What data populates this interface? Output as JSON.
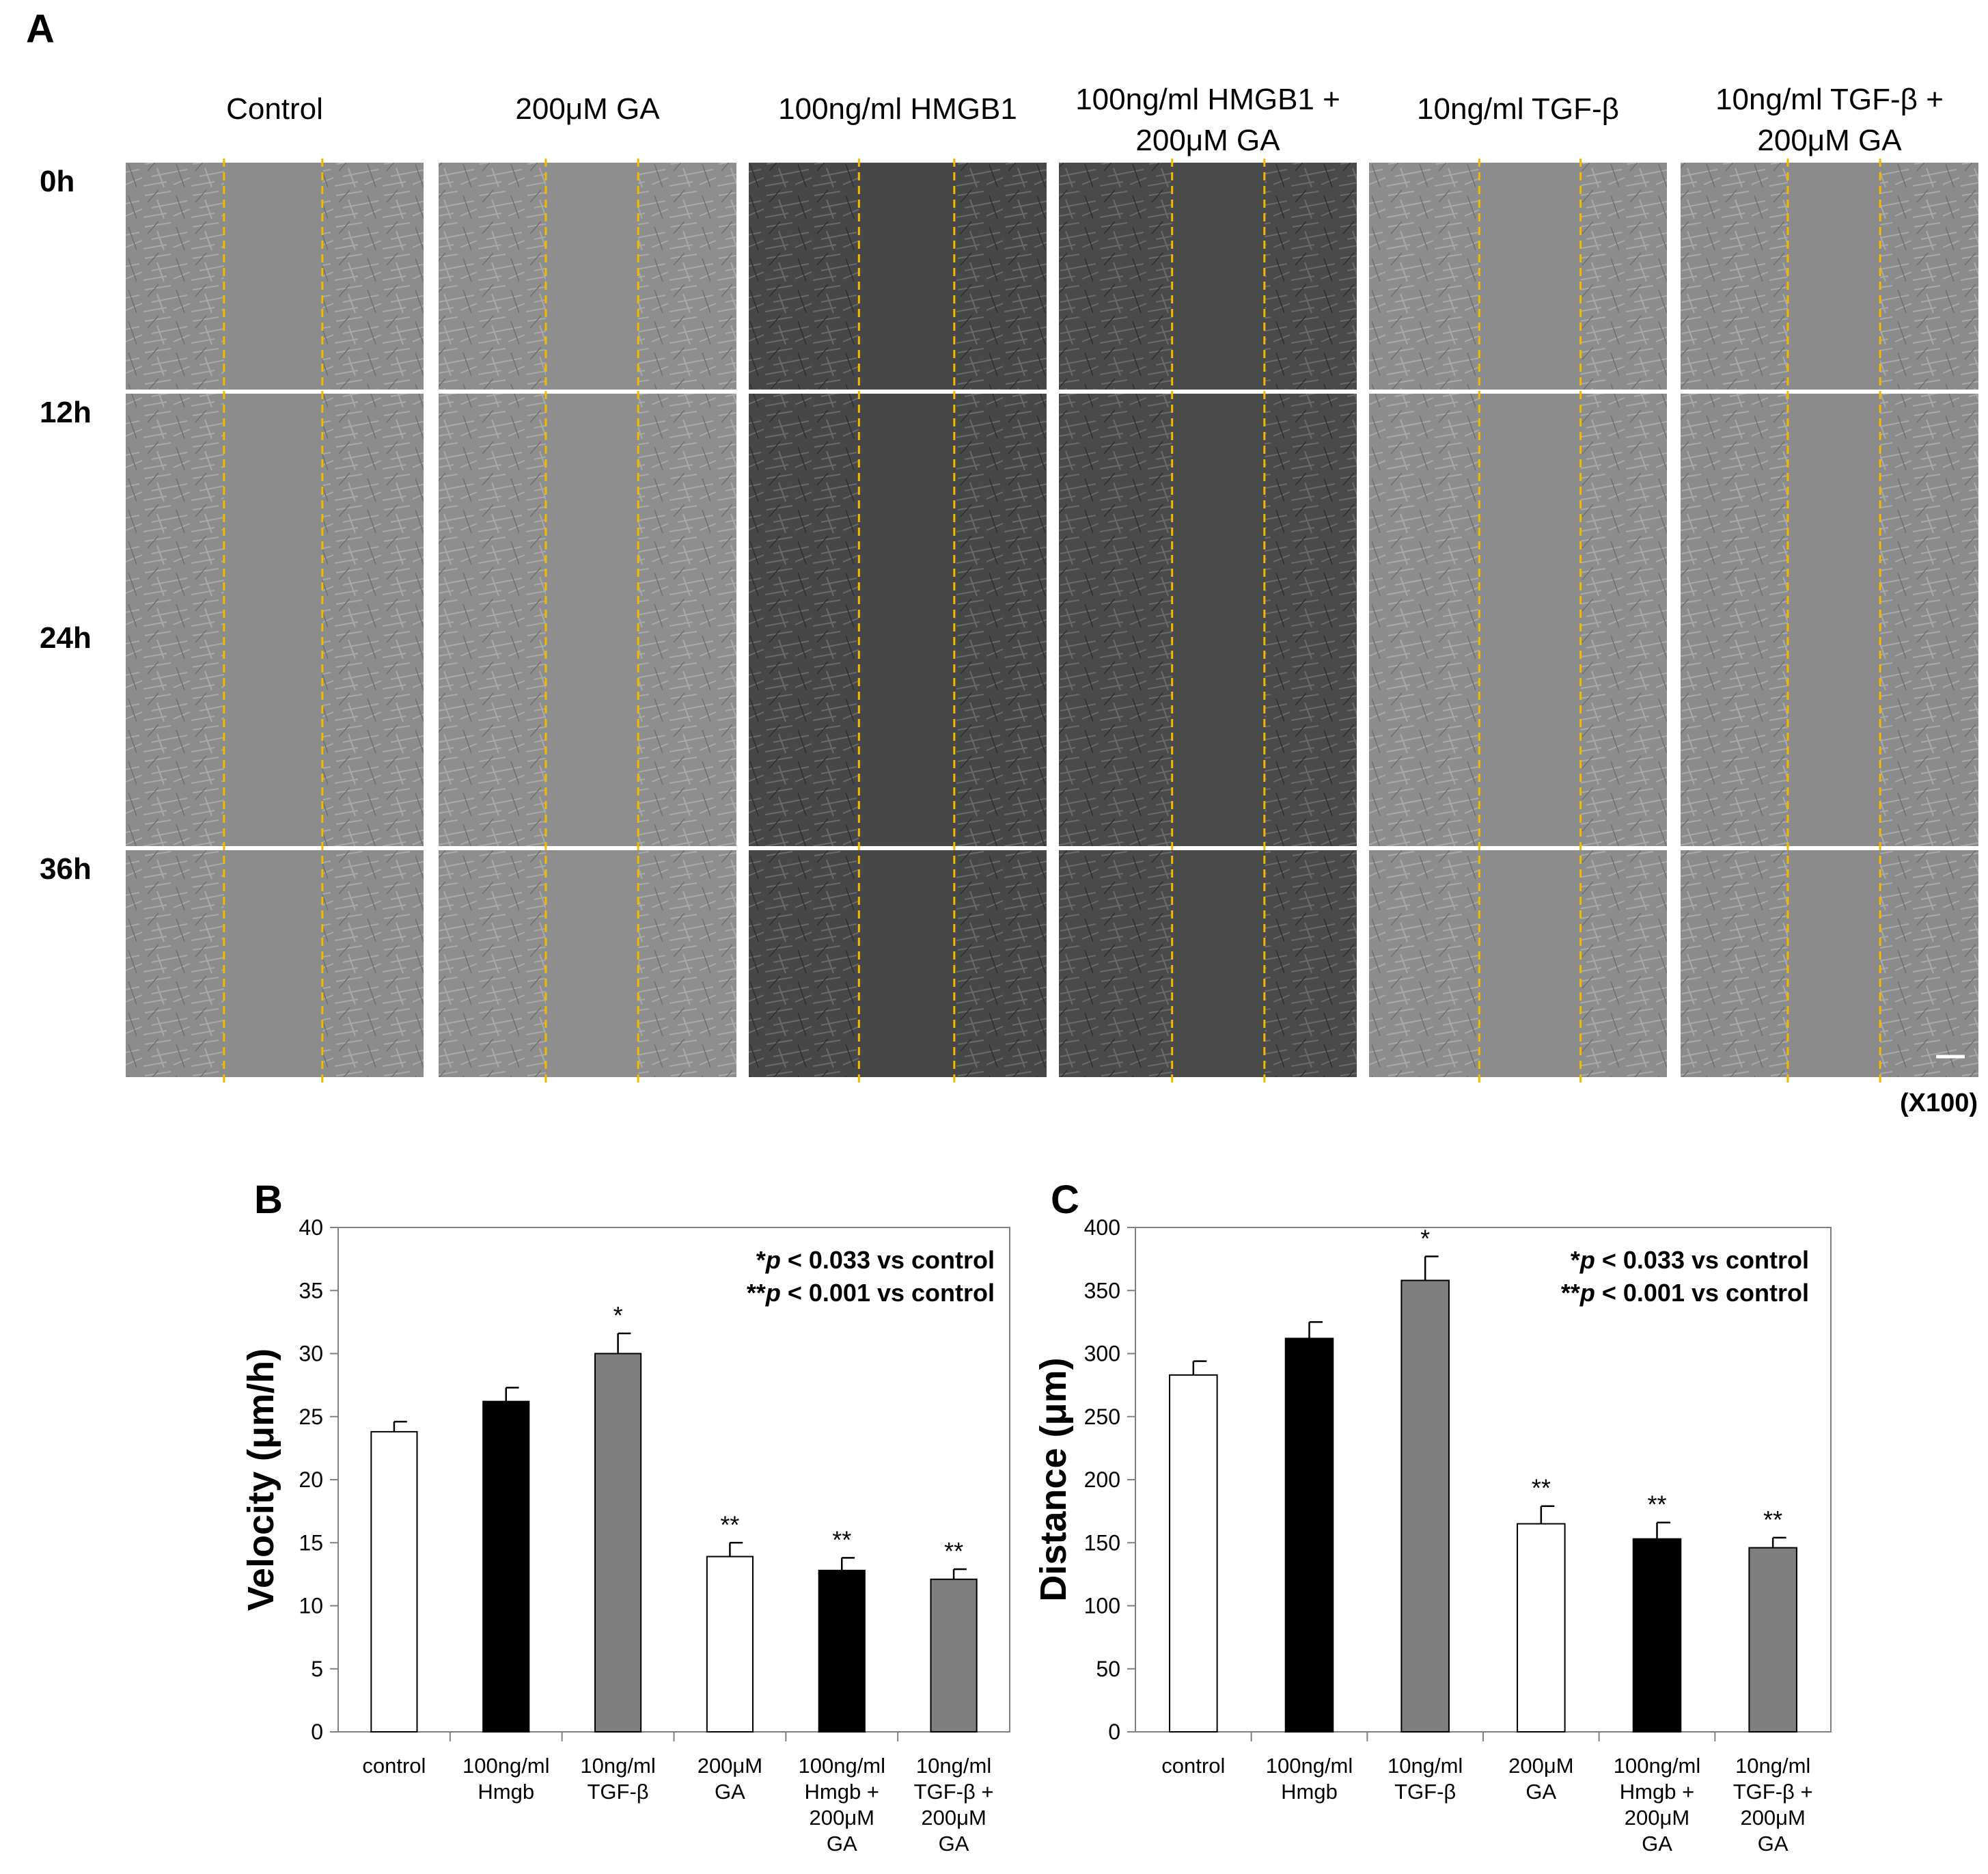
{
  "panels": {
    "a_label": "A",
    "b_label": "B",
    "c_label": "C"
  },
  "micrograph_grid": {
    "columns": [
      {
        "line1": "Control",
        "line2": "",
        "bg": "#8c8c8c",
        "lines": [
          0.33,
          0.66
        ]
      },
      {
        "line1": "200μM GA",
        "line2": "",
        "bg": "#8e8e8e",
        "lines": [
          0.36,
          0.67
        ]
      },
      {
        "line1": "100ng/ml HMGB1",
        "line2": "",
        "bg": "#474747",
        "lines": [
          0.37,
          0.69
        ]
      },
      {
        "line1": "100ng/ml HMGB1 +",
        "line2": "200μM GA",
        "bg": "#4a4a4a",
        "lines": [
          0.38,
          0.69
        ]
      },
      {
        "line1": "10ng/ml  TGF-β",
        "line2": "",
        "bg": "#8d8d8d",
        "lines": [
          0.37,
          0.71
        ]
      },
      {
        "line1": "10ng/ml  TGF-β +",
        "line2": "200μM GA",
        "bg": "#8b8b8b",
        "lines": [
          0.36,
          0.67
        ]
      }
    ],
    "rows": [
      "0h",
      "12h",
      "24h",
      "36h"
    ],
    "magnification": "(X100)",
    "guide_color": "#f5b800"
  },
  "chart_data": [
    {
      "type": "bar",
      "title": "",
      "ylabel": "Velocity (μm/h)",
      "xlabel": "",
      "ylim": [
        0,
        40
      ],
      "yticks": [
        0,
        5,
        10,
        15,
        20,
        25,
        30,
        35,
        40
      ],
      "grid": false,
      "categories": [
        [
          "control"
        ],
        [
          "100ng/ml",
          "Hmgb"
        ],
        [
          "10ng/ml",
          "TGF-β"
        ],
        [
          "200μM",
          "GA"
        ],
        [
          "100ng/ml",
          "Hmgb +",
          "200μM",
          "GA"
        ],
        [
          "10ng/ml",
          "TGF-β +",
          "200μM",
          "GA"
        ]
      ],
      "values": [
        23.8,
        26.2,
        30.0,
        13.9,
        12.8,
        12.1
      ],
      "errors": [
        0.8,
        1.1,
        1.6,
        1.1,
        1.0,
        0.8
      ],
      "significance": [
        "",
        "",
        "*",
        "**",
        "**",
        "**"
      ],
      "bar_colors": [
        "#ffffff",
        "#000000",
        "#7f7f7f",
        "#ffffff",
        "#000000",
        "#7f7f7f"
      ],
      "legend_notes": [
        {
          "prefix": "*",
          "p": "p",
          "rest": " < 0.033  vs control"
        },
        {
          "prefix": "**",
          "p": "p",
          "rest": " < 0.001  vs control"
        }
      ]
    },
    {
      "type": "bar",
      "title": "",
      "ylabel": "Distance (μm)",
      "xlabel": "",
      "ylim": [
        0,
        400
      ],
      "yticks": [
        0,
        50,
        100,
        150,
        200,
        250,
        300,
        350,
        400
      ],
      "grid": false,
      "categories": [
        [
          "control"
        ],
        [
          "100ng/ml",
          "Hmgb"
        ],
        [
          "10ng/ml",
          "TGF-β"
        ],
        [
          "200μM",
          "GA"
        ],
        [
          "100ng/ml",
          "Hmgb +",
          "200μM",
          "GA"
        ],
        [
          "10ng/ml",
          "TGF-β +",
          "200μM",
          "GA"
        ]
      ],
      "values": [
        283,
        312,
        358,
        165,
        153,
        146
      ],
      "errors": [
        11,
        13,
        19,
        14,
        13,
        8
      ],
      "significance": [
        "",
        "",
        "*",
        "**",
        "**",
        "**"
      ],
      "bar_colors": [
        "#ffffff",
        "#000000",
        "#7f7f7f",
        "#ffffff",
        "#000000",
        "#7f7f7f"
      ],
      "legend_notes": [
        {
          "prefix": "*",
          "p": "p",
          "rest": " < 0.033  vs control"
        },
        {
          "prefix": "**",
          "p": "p",
          "rest": " < 0.001  vs control"
        }
      ]
    }
  ]
}
